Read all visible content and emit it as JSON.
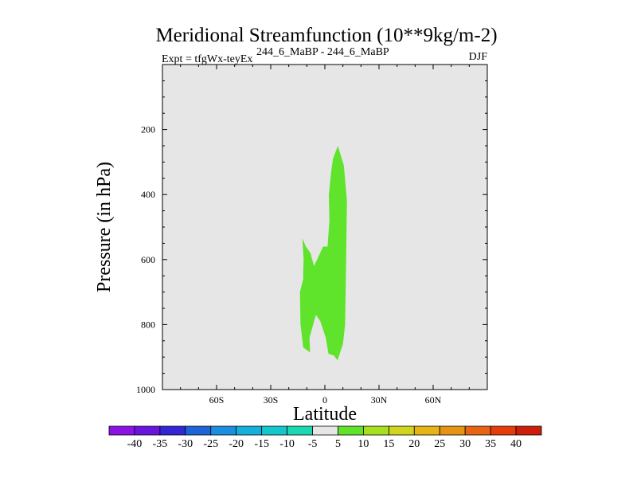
{
  "chart_data": {
    "type": "contour",
    "title": "Meridional Streamfunction (10**9kg/m-2)",
    "subtitle_left": "Expt = tfgWx-teyEx",
    "subtitle_center": "244_6_MaBP - 244_6_MaBP",
    "season": "DJF",
    "xlabel": "Latitude",
    "ylabel": "Pressure (in hPa)",
    "xlim": [
      -90,
      90
    ],
    "ylim": [
      1000,
      0
    ],
    "x_ticks": [
      {
        "value": -60,
        "label": "60S"
      },
      {
        "value": -30,
        "label": "30S"
      },
      {
        "value": 0,
        "label": "0"
      },
      {
        "value": 30,
        "label": "30N"
      },
      {
        "value": 60,
        "label": "60N"
      }
    ],
    "y_ticks": [
      {
        "value": 200,
        "label": "200"
      },
      {
        "value": 400,
        "label": "400"
      },
      {
        "value": 600,
        "label": "600"
      },
      {
        "value": 800,
        "label": "800"
      },
      {
        "value": 1000,
        "label": "1000"
      }
    ],
    "background_color": "#e6e6e6",
    "regions": [
      {
        "level_range": "5 to 10",
        "color": "#5fe32b",
        "points": [
          [
            7.2,
            250
          ],
          [
            10.5,
            310
          ],
          [
            12.2,
            420
          ],
          [
            11.8,
            600
          ],
          [
            11.2,
            800
          ],
          [
            10.0,
            860
          ],
          [
            7.0,
            910
          ],
          [
            5.0,
            895
          ],
          [
            2.0,
            890
          ],
          [
            0.5,
            840
          ],
          [
            -2.5,
            790
          ],
          [
            -5.0,
            770
          ],
          [
            -8.5,
            840
          ],
          [
            -8.2,
            885
          ],
          [
            -9.7,
            880
          ],
          [
            -12.0,
            870
          ],
          [
            -13.5,
            800
          ],
          [
            -13.8,
            700
          ],
          [
            -12.0,
            660
          ],
          [
            -12.0,
            640
          ],
          [
            -11.8,
            600
          ],
          [
            -12.5,
            535
          ],
          [
            -10.5,
            560
          ],
          [
            -8.0,
            580
          ],
          [
            -6.0,
            620
          ],
          [
            -3.5,
            590
          ],
          [
            -1.0,
            560
          ],
          [
            1.5,
            560
          ],
          [
            2.5,
            480
          ],
          [
            2.2,
            400
          ],
          [
            3.5,
            330
          ],
          [
            4.5,
            290
          ]
        ]
      }
    ],
    "colorbar": {
      "labels": [
        "-40",
        "-35",
        "-30",
        "-25",
        "-20",
        "-15",
        "-10",
        "-5",
        "5",
        "10",
        "15",
        "20",
        "25",
        "30",
        "35",
        "40"
      ],
      "colors": [
        "#8c12e6",
        "#6a14e0",
        "#3226d6",
        "#1e64d8",
        "#1a8ee0",
        "#14b0dc",
        "#12c8cc",
        "#1ad8b0",
        "#e6e6e6",
        "#5fe32b",
        "#a8e01e",
        "#d0d41a",
        "#e6b414",
        "#e69414",
        "#e66414",
        "#e63c0a",
        "#cc1e0a"
      ]
    }
  }
}
